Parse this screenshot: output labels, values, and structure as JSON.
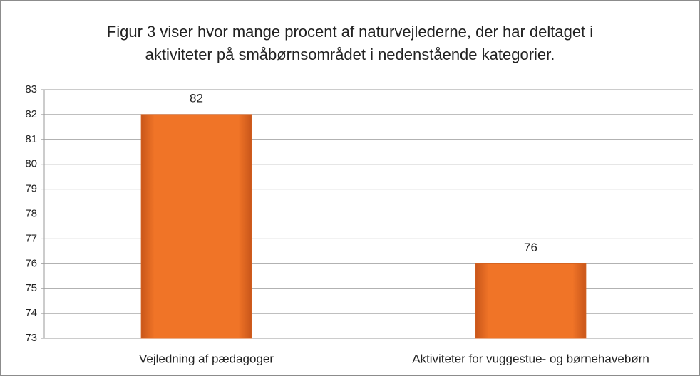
{
  "chart_data": {
    "type": "bar",
    "title": "Figur 3 viser hvor mange procent af naturvejlederne, der har deltaget i aktiviteter på småbørnsområdet i nedenstående kategorier.",
    "categories": [
      "Vejledning af pædagoger",
      "Aktiviteter for vuggestue- og børnehavebørn"
    ],
    "values": [
      82,
      76
    ],
    "color": "#f07427",
    "ylim": [
      73,
      83
    ],
    "yticks": [
      73,
      74,
      75,
      76,
      77,
      78,
      79,
      80,
      81,
      82,
      83
    ],
    "grid": true
  }
}
